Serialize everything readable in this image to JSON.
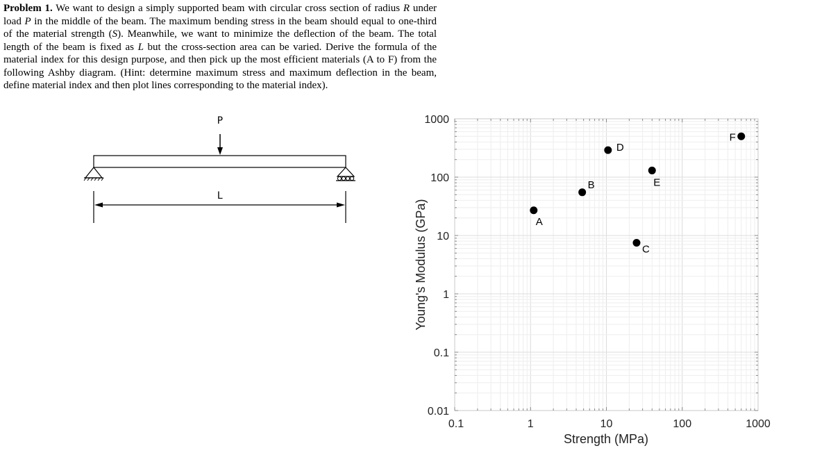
{
  "problem": {
    "lead": "Problem 1.",
    "segments": [
      {
        "t": " We want to design a simply supported beam with circular cross section of radius "
      },
      {
        "t": "R",
        "i": true
      },
      {
        "t": " under load "
      },
      {
        "t": "P",
        "i": true
      },
      {
        "t": " in the middle of the beam. The maximum bending stress in the beam should equal to one-third of the material strength ("
      },
      {
        "t": "S",
        "i": true
      },
      {
        "t": "). Meanwhile, we want to minimize the deflection of the beam. The total length of the beam is fixed as "
      },
      {
        "t": "L",
        "i": true
      },
      {
        "t": " but the cross-section area can be varied. Derive the formula of the material index for this design purpose, and then pick up the most efficient materials (A to F) from the following Ashby diagram. (Hint: determine maximum stress and maximum deflection in the beam, define material index and then plot lines corresponding to the material index)."
      }
    ]
  },
  "beam_figure": {
    "load_label": "P",
    "length_label": "L"
  },
  "chart_data": {
    "type": "scatter",
    "xlabel": "Strength (MPa)",
    "ylabel": "Young's Modulus (GPa)",
    "x_scale": "log",
    "y_scale": "log",
    "xlim": [
      0.1,
      1000
    ],
    "ylim": [
      0.01,
      1000
    ],
    "x_ticks": [
      0.1,
      1,
      10,
      100,
      1000
    ],
    "x_tick_labels": [
      "0.1",
      "1",
      "10",
      "100",
      "1000"
    ],
    "y_ticks": [
      0.01,
      0.1,
      1,
      10,
      100,
      1000
    ],
    "y_tick_labels": [
      "0.01",
      "0.1",
      "1",
      "10",
      "100",
      "1000"
    ],
    "grid": true,
    "points": [
      {
        "label": "A",
        "x": 1.1,
        "y": 27
      },
      {
        "label": "B",
        "x": 4.8,
        "y": 55
      },
      {
        "label": "C",
        "x": 25,
        "y": 7.5
      },
      {
        "label": "D",
        "x": 10.5,
        "y": 290
      },
      {
        "label": "E",
        "x": 40,
        "y": 130
      },
      {
        "label": "F",
        "x": 600,
        "y": 500
      }
    ],
    "marker_color": "#000000"
  }
}
